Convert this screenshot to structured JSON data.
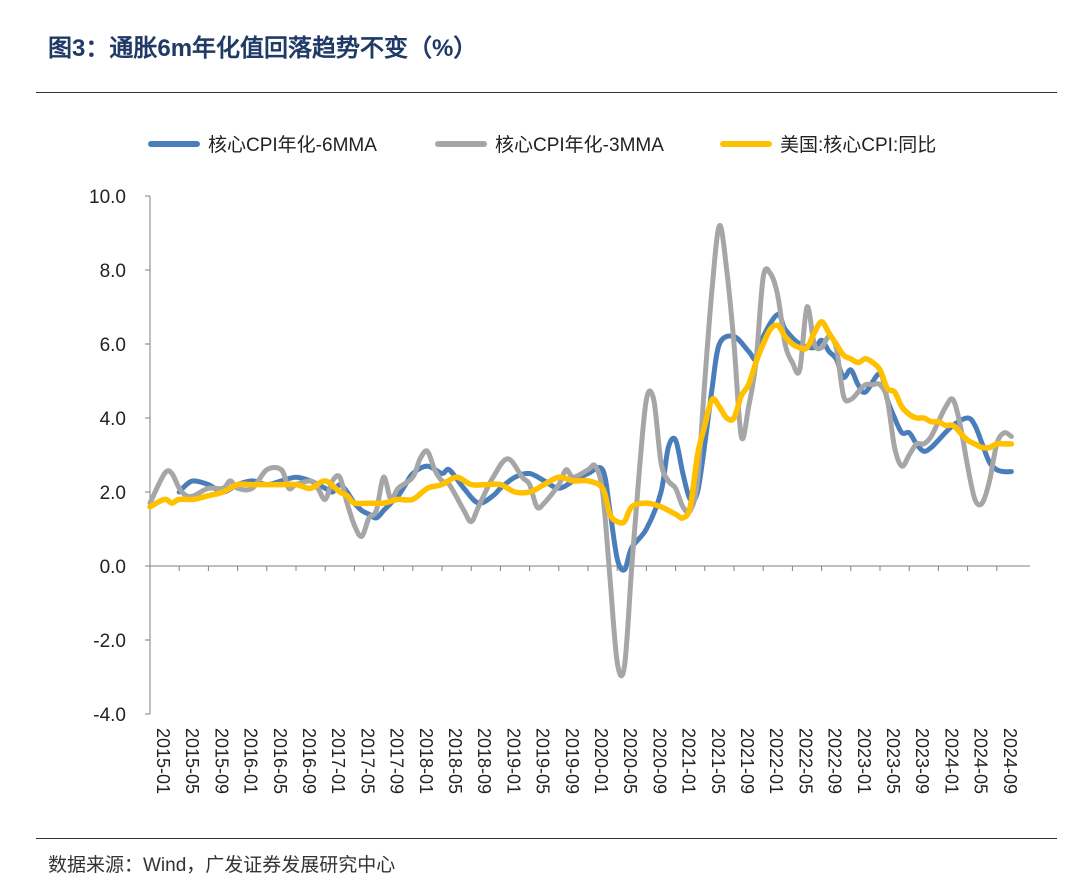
{
  "header": {
    "title": "图3：通胀6m年化值回落趋势不变（%）"
  },
  "footer": {
    "source": "数据来源：Wind，广发证券发展研究中心"
  },
  "chart_data": {
    "type": "line",
    "yticks": [
      "10.0",
      "8.0",
      "6.0",
      "4.0",
      "2.0",
      "0.0",
      "-2.0",
      "-4.0"
    ],
    "ylim": [
      -4,
      10
    ],
    "xlabels": [
      "2015-01",
      "2015-05",
      "2015-09",
      "2016-01",
      "2016-05",
      "2016-09",
      "2017-01",
      "2017-05",
      "2017-09",
      "2018-01",
      "2018-05",
      "2018-09",
      "2019-01",
      "2019-05",
      "2019-09",
      "2020-01",
      "2020-05",
      "2020-09",
      "2021-01",
      "2021-05",
      "2021-09",
      "2022-01",
      "2022-05",
      "2022-09",
      "2023-01",
      "2023-05",
      "2023-09",
      "2024-01",
      "2024-05",
      "2024-09"
    ],
    "legend_position": "top",
    "grid": false,
    "series": [
      {
        "name": "核心CPI年化-6MMA",
        "color": "#4a7ebb",
        "points": [
          [
            "2015-05",
            2.0
          ],
          [
            "2015-06",
            2.2
          ],
          [
            "2015-07",
            2.3
          ],
          [
            "2015-09",
            2.2
          ],
          [
            "2015-11",
            2.0
          ],
          [
            "2016-01",
            2.2
          ],
          [
            "2016-03",
            2.3
          ],
          [
            "2016-05",
            2.2
          ],
          [
            "2016-07",
            2.3
          ],
          [
            "2016-09",
            2.4
          ],
          [
            "2016-11",
            2.3
          ],
          [
            "2017-01",
            2.1
          ],
          [
            "2017-02",
            2.0
          ],
          [
            "2017-03",
            2.2
          ],
          [
            "2017-04",
            2.0
          ],
          [
            "2017-05",
            1.7
          ],
          [
            "2017-06",
            1.5
          ],
          [
            "2017-07",
            1.4
          ],
          [
            "2017-08",
            1.3
          ],
          [
            "2017-09",
            1.5
          ],
          [
            "2017-10",
            1.7
          ],
          [
            "2017-11",
            1.9
          ],
          [
            "2017-12",
            2.2
          ],
          [
            "2018-01",
            2.5
          ],
          [
            "2018-03",
            2.7
          ],
          [
            "2018-05",
            2.5
          ],
          [
            "2018-06",
            2.6
          ],
          [
            "2018-08",
            2.1
          ],
          [
            "2018-10",
            1.7
          ],
          [
            "2018-12",
            1.9
          ],
          [
            "2019-01",
            2.1
          ],
          [
            "2019-03",
            2.4
          ],
          [
            "2019-05",
            2.5
          ],
          [
            "2019-07",
            2.3
          ],
          [
            "2019-09",
            2.1
          ],
          [
            "2019-11",
            2.3
          ],
          [
            "2020-01",
            2.5
          ],
          [
            "2020-03",
            2.6
          ],
          [
            "2020-04",
            1.5
          ],
          [
            "2020-05",
            0.2
          ],
          [
            "2020-06",
            -0.1
          ],
          [
            "2020-07",
            0.5
          ],
          [
            "2020-09",
            1.0
          ],
          [
            "2020-11",
            2.0
          ],
          [
            "2020-12",
            3.2
          ],
          [
            "2021-01",
            3.4
          ],
          [
            "2021-02",
            2.5
          ],
          [
            "2021-03",
            1.8
          ],
          [
            "2021-04",
            2.0
          ],
          [
            "2021-05",
            3.3
          ],
          [
            "2021-06",
            4.8
          ],
          [
            "2021-07",
            6.0
          ],
          [
            "2021-09",
            6.2
          ],
          [
            "2021-11",
            5.8
          ],
          [
            "2021-12",
            5.6
          ],
          [
            "2022-01",
            6.2
          ],
          [
            "2022-03",
            6.8
          ],
          [
            "2022-04",
            6.4
          ],
          [
            "2022-06",
            6.0
          ],
          [
            "2022-08",
            5.9
          ],
          [
            "2022-09",
            6.1
          ],
          [
            "2022-10",
            5.8
          ],
          [
            "2022-11",
            5.6
          ],
          [
            "2022-12",
            5.1
          ],
          [
            "2023-01",
            5.3
          ],
          [
            "2023-02",
            4.9
          ],
          [
            "2023-03",
            4.7
          ],
          [
            "2023-05",
            5.2
          ],
          [
            "2023-06",
            4.5
          ],
          [
            "2023-07",
            4.0
          ],
          [
            "2023-08",
            3.6
          ],
          [
            "2023-09",
            3.6
          ],
          [
            "2023-10",
            3.3
          ],
          [
            "2023-11",
            3.1
          ],
          [
            "2023-12",
            3.2
          ],
          [
            "2024-01",
            3.4
          ],
          [
            "2024-03",
            3.8
          ],
          [
            "2024-05",
            4.0
          ],
          [
            "2024-06",
            3.8
          ],
          [
            "2024-07",
            3.3
          ],
          [
            "2024-08",
            2.8
          ],
          [
            "2024-09",
            2.6
          ],
          [
            "2024-10",
            2.55
          ],
          [
            "2024-11",
            2.55
          ]
        ]
      },
      {
        "name": "核心CPI年化-3MMA",
        "color": "#a6a6a6",
        "points": [
          [
            "2015-01",
            1.7
          ],
          [
            "2015-03",
            2.5
          ],
          [
            "2015-04",
            2.5
          ],
          [
            "2015-05",
            2.1
          ],
          [
            "2015-06",
            1.9
          ],
          [
            "2015-07",
            1.9
          ],
          [
            "2015-09",
            2.1
          ],
          [
            "2015-11",
            2.1
          ],
          [
            "2015-12",
            2.3
          ],
          [
            "2016-01",
            2.1
          ],
          [
            "2016-03",
            2.1
          ],
          [
            "2016-05",
            2.6
          ],
          [
            "2016-07",
            2.6
          ],
          [
            "2016-08",
            2.1
          ],
          [
            "2016-09",
            2.2
          ],
          [
            "2016-11",
            2.3
          ],
          [
            "2016-12",
            2.1
          ],
          [
            "2017-01",
            1.8
          ],
          [
            "2017-02",
            2.3
          ],
          [
            "2017-03",
            2.4
          ],
          [
            "2017-04",
            1.7
          ],
          [
            "2017-05",
            1.1
          ],
          [
            "2017-06",
            0.8
          ],
          [
            "2017-07",
            1.3
          ],
          [
            "2017-08",
            1.5
          ],
          [
            "2017-09",
            2.4
          ],
          [
            "2017-10",
            1.8
          ],
          [
            "2017-11",
            2.1
          ],
          [
            "2018-01",
            2.4
          ],
          [
            "2018-02",
            2.9
          ],
          [
            "2018-03",
            3.1
          ],
          [
            "2018-04",
            2.6
          ],
          [
            "2018-05",
            2.3
          ],
          [
            "2018-06",
            2.2
          ],
          [
            "2018-08",
            1.5
          ],
          [
            "2018-09",
            1.2
          ],
          [
            "2018-10",
            1.6
          ],
          [
            "2018-12",
            2.4
          ],
          [
            "2019-02",
            2.9
          ],
          [
            "2019-04",
            2.4
          ],
          [
            "2019-05",
            2.2
          ],
          [
            "2019-06",
            1.6
          ],
          [
            "2019-07",
            1.7
          ],
          [
            "2019-09",
            2.2
          ],
          [
            "2019-10",
            2.6
          ],
          [
            "2019-11",
            2.4
          ],
          [
            "2020-01",
            2.6
          ],
          [
            "2020-02",
            2.7
          ],
          [
            "2020-03",
            2.0
          ],
          [
            "2020-04",
            -0.3
          ],
          [
            "2020-05",
            -2.6
          ],
          [
            "2020-06",
            -2.7
          ],
          [
            "2020-07",
            0.0
          ],
          [
            "2020-08",
            2.5
          ],
          [
            "2020-09",
            4.5
          ],
          [
            "2020-10",
            4.5
          ],
          [
            "2020-11",
            2.8
          ],
          [
            "2020-12",
            2.3
          ],
          [
            "2021-01",
            2.1
          ],
          [
            "2021-02",
            1.6
          ],
          [
            "2021-03",
            1.5
          ],
          [
            "2021-04",
            2.3
          ],
          [
            "2021-05",
            5.0
          ],
          [
            "2021-06",
            7.5
          ],
          [
            "2021-07",
            9.2
          ],
          [
            "2021-08",
            8.0
          ],
          [
            "2021-09",
            6.0
          ],
          [
            "2021-10",
            3.5
          ],
          [
            "2021-11",
            4.3
          ],
          [
            "2021-12",
            5.5
          ],
          [
            "2022-01",
            7.8
          ],
          [
            "2022-02",
            7.9
          ],
          [
            "2022-03",
            7.3
          ],
          [
            "2022-04",
            6.0
          ],
          [
            "2022-05",
            5.5
          ],
          [
            "2022-06",
            5.3
          ],
          [
            "2022-07",
            7.0
          ],
          [
            "2022-08",
            6.0
          ],
          [
            "2022-09",
            5.9
          ],
          [
            "2022-10",
            6.2
          ],
          [
            "2022-11",
            5.9
          ],
          [
            "2022-12",
            4.6
          ],
          [
            "2023-01",
            4.5
          ],
          [
            "2023-02",
            4.7
          ],
          [
            "2023-03",
            4.9
          ],
          [
            "2023-04",
            4.9
          ],
          [
            "2023-05",
            4.9
          ],
          [
            "2023-06",
            4.5
          ],
          [
            "2023-07",
            3.2
          ],
          [
            "2023-08",
            2.7
          ],
          [
            "2023-09",
            3.0
          ],
          [
            "2023-10",
            3.3
          ],
          [
            "2023-11",
            3.3
          ],
          [
            "2023-12",
            3.5
          ],
          [
            "2024-01",
            3.9
          ],
          [
            "2024-02",
            4.3
          ],
          [
            "2024-03",
            4.5
          ],
          [
            "2024-04",
            3.8
          ],
          [
            "2024-05",
            2.7
          ],
          [
            "2024-06",
            1.8
          ],
          [
            "2024-07",
            1.7
          ],
          [
            "2024-08",
            2.3
          ],
          [
            "2024-09",
            3.3
          ],
          [
            "2024-10",
            3.6
          ],
          [
            "2024-11",
            3.5
          ]
        ]
      },
      {
        "name": "美国:核心CPI:同比",
        "color": "#ffc000",
        "points": [
          [
            "2015-01",
            1.6
          ],
          [
            "2015-03",
            1.8
          ],
          [
            "2015-04",
            1.7
          ],
          [
            "2015-05",
            1.8
          ],
          [
            "2015-07",
            1.8
          ],
          [
            "2015-09",
            1.9
          ],
          [
            "2015-11",
            2.0
          ],
          [
            "2016-01",
            2.2
          ],
          [
            "2016-03",
            2.2
          ],
          [
            "2016-05",
            2.2
          ],
          [
            "2016-07",
            2.2
          ],
          [
            "2016-09",
            2.2
          ],
          [
            "2016-11",
            2.1
          ],
          [
            "2017-01",
            2.3
          ],
          [
            "2017-03",
            2.0
          ],
          [
            "2017-04",
            1.9
          ],
          [
            "2017-05",
            1.7
          ],
          [
            "2017-07",
            1.7
          ],
          [
            "2017-09",
            1.7
          ],
          [
            "2017-11",
            1.8
          ],
          [
            "2018-01",
            1.8
          ],
          [
            "2018-03",
            2.1
          ],
          [
            "2018-05",
            2.2
          ],
          [
            "2018-07",
            2.4
          ],
          [
            "2018-09",
            2.2
          ],
          [
            "2018-11",
            2.2
          ],
          [
            "2019-01",
            2.2
          ],
          [
            "2019-03",
            2.0
          ],
          [
            "2019-05",
            2.0
          ],
          [
            "2019-07",
            2.2
          ],
          [
            "2019-09",
            2.4
          ],
          [
            "2019-11",
            2.3
          ],
          [
            "2020-01",
            2.3
          ],
          [
            "2020-03",
            2.1
          ],
          [
            "2020-04",
            1.4
          ],
          [
            "2020-05",
            1.2
          ],
          [
            "2020-06",
            1.2
          ],
          [
            "2020-07",
            1.6
          ],
          [
            "2020-09",
            1.7
          ],
          [
            "2020-11",
            1.6
          ],
          [
            "2021-01",
            1.4
          ],
          [
            "2021-02",
            1.3
          ],
          [
            "2021-03",
            1.6
          ],
          [
            "2021-04",
            3.0
          ],
          [
            "2021-05",
            3.8
          ],
          [
            "2021-06",
            4.5
          ],
          [
            "2021-07",
            4.3
          ],
          [
            "2021-08",
            4.0
          ],
          [
            "2021-09",
            4.0
          ],
          [
            "2021-10",
            4.6
          ],
          [
            "2021-11",
            4.9
          ],
          [
            "2021-12",
            5.5
          ],
          [
            "2022-01",
            6.0
          ],
          [
            "2022-02",
            6.4
          ],
          [
            "2022-03",
            6.5
          ],
          [
            "2022-04",
            6.2
          ],
          [
            "2022-05",
            6.0
          ],
          [
            "2022-06",
            5.9
          ],
          [
            "2022-07",
            5.9
          ],
          [
            "2022-08",
            6.3
          ],
          [
            "2022-09",
            6.6
          ],
          [
            "2022-10",
            6.3
          ],
          [
            "2022-11",
            6.0
          ],
          [
            "2022-12",
            5.7
          ],
          [
            "2023-01",
            5.6
          ],
          [
            "2023-02",
            5.5
          ],
          [
            "2023-03",
            5.6
          ],
          [
            "2023-04",
            5.5
          ],
          [
            "2023-05",
            5.3
          ],
          [
            "2023-06",
            4.8
          ],
          [
            "2023-07",
            4.7
          ],
          [
            "2023-08",
            4.3
          ],
          [
            "2023-09",
            4.1
          ],
          [
            "2023-10",
            4.0
          ],
          [
            "2023-11",
            4.0
          ],
          [
            "2023-12",
            3.9
          ],
          [
            "2024-01",
            3.9
          ],
          [
            "2024-02",
            3.8
          ],
          [
            "2024-03",
            3.8
          ],
          [
            "2024-04",
            3.6
          ],
          [
            "2024-05",
            3.4
          ],
          [
            "2024-06",
            3.3
          ],
          [
            "2024-07",
            3.2
          ],
          [
            "2024-08",
            3.2
          ],
          [
            "2024-09",
            3.3
          ],
          [
            "2024-10",
            3.3
          ],
          [
            "2024-11",
            3.3
          ]
        ]
      }
    ]
  }
}
